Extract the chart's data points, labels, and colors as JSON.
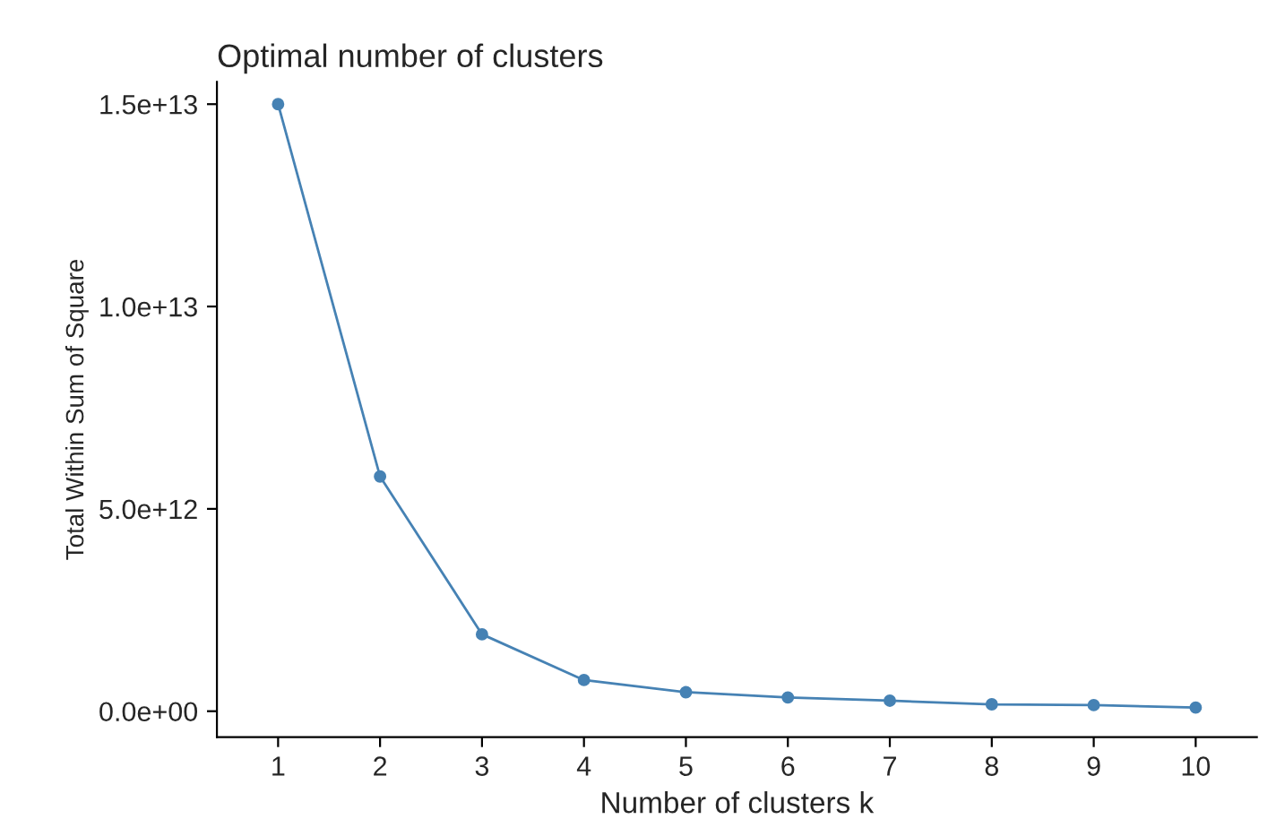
{
  "chart_data": {
    "type": "line",
    "title": "Optimal number of clusters",
    "xlabel": "Number of clusters k",
    "ylabel": "Total Within Sum of Square",
    "categories": [
      "1",
      "2",
      "3",
      "4",
      "5",
      "6",
      "7",
      "8",
      "9",
      "10"
    ],
    "series": [
      {
        "color": "#4682b4",
        "values": [
          15000000000000.0,
          5800000000000.0,
          1900000000000.0,
          770000000000.0,
          470000000000.0,
          340000000000.0,
          260000000000.0,
          170000000000.0,
          150000000000.0,
          90000000000.0
        ]
      }
    ],
    "ylim": [
      -640000000000.0,
      15550000000000.0
    ],
    "yticks": [
      {
        "value": 0,
        "label": "0.0e+00"
      },
      {
        "value": 5000000000000.0,
        "label": "5.0e+12"
      },
      {
        "value": 10000000000000.0,
        "label": "1.0e+13"
      },
      {
        "value": 15000000000000.0,
        "label": "1.5e+13"
      }
    ],
    "grid": false,
    "legend": false,
    "marker": "circle",
    "line_style": "solid"
  }
}
